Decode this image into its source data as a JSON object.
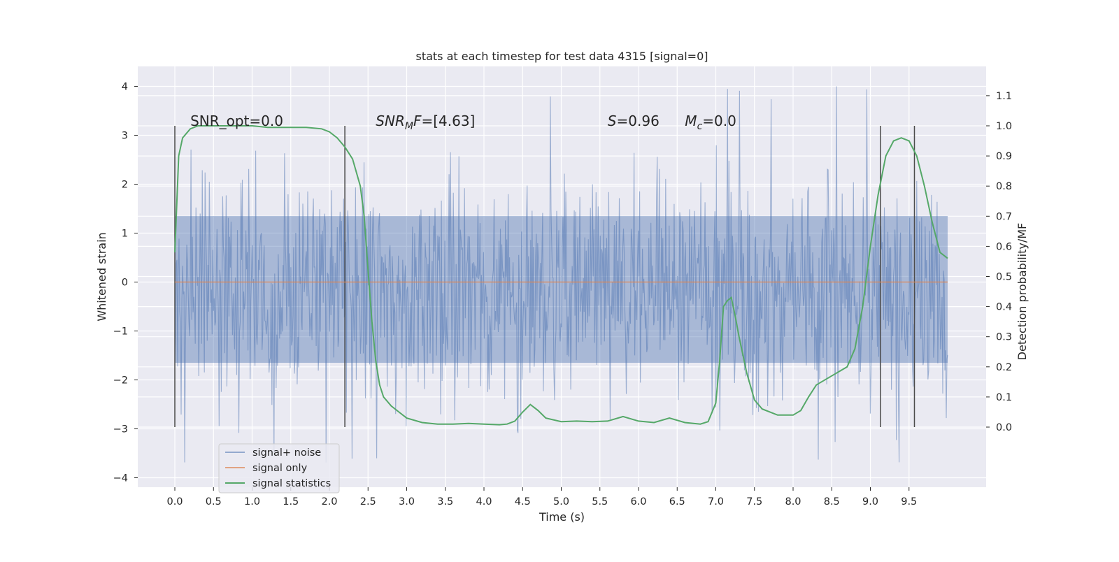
{
  "chart_data": {
    "type": "line",
    "title": "stats at each timestep for test data 4315 [signal=0]",
    "xlabel": "Time (s)",
    "ylabel": "Whitened strain",
    "y2label": "Detection probability/MF",
    "xlim": [
      -0.5,
      10.5
    ],
    "ylim": [
      -4.2,
      4.4
    ],
    "y2lim": [
      -0.18,
      1.2
    ],
    "x_ticks": [
      0.0,
      0.5,
      1.0,
      1.5,
      2.0,
      2.5,
      3.0,
      3.5,
      4.0,
      4.5,
      5.0,
      5.5,
      6.0,
      6.5,
      7.0,
      7.5,
      8.0,
      8.5,
      9.0,
      9.5
    ],
    "y_ticks": [
      -4,
      -3,
      -2,
      -1,
      0,
      1,
      2,
      3,
      4
    ],
    "y2_ticks": [
      0.0,
      0.1,
      0.2,
      0.3,
      0.4,
      0.5,
      0.6,
      0.7,
      0.8,
      0.9,
      1.0,
      1.1
    ],
    "grid": true,
    "legend_position": "lower-left",
    "colors": {
      "background": "#eaeaf2",
      "noise": "#4c72b0",
      "signal_only": "#dd8452",
      "statistics": "#55a868",
      "marker": "#4a4a4a",
      "grid": "#ffffff"
    },
    "series": [
      {
        "name": "signal+ noise",
        "axis": "left",
        "x_range": [
          0.0,
          10.0
        ],
        "sample_count": 1100,
        "typical_range": [
          -1.7,
          1.4
        ],
        "extremes": [
          -3.8,
          4.05
        ]
      },
      {
        "name": "signal only",
        "axis": "left",
        "x": [
          0.0,
          10.0
        ],
        "y": [
          0.0,
          0.0
        ]
      },
      {
        "name": "signal statistics",
        "axis": "right",
        "x": [
          0.0,
          0.05,
          0.1,
          0.2,
          0.3,
          0.5,
          0.8,
          1.0,
          1.2,
          1.5,
          1.7,
          1.9,
          2.0,
          2.1,
          2.2,
          2.3,
          2.4,
          2.45,
          2.5,
          2.55,
          2.6,
          2.65,
          2.7,
          2.8,
          2.9,
          3.0,
          3.2,
          3.4,
          3.6,
          3.8,
          4.0,
          4.2,
          4.3,
          4.4,
          4.5,
          4.6,
          4.7,
          4.8,
          5.0,
          5.2,
          5.4,
          5.6,
          5.8,
          6.0,
          6.2,
          6.4,
          6.6,
          6.8,
          6.9,
          7.0,
          7.05,
          7.1,
          7.15,
          7.2,
          7.25,
          7.3,
          7.4,
          7.5,
          7.6,
          7.8,
          8.0,
          8.1,
          8.2,
          8.3,
          8.5,
          8.7,
          8.8,
          8.9,
          9.0,
          9.1,
          9.2,
          9.3,
          9.4,
          9.5,
          9.6,
          9.7,
          9.8,
          9.9,
          10.0
        ],
        "y": [
          0.58,
          0.9,
          0.96,
          0.99,
          1.0,
          1.0,
          1.0,
          1.0,
          0.995,
          0.995,
          0.995,
          0.99,
          0.98,
          0.96,
          0.93,
          0.89,
          0.8,
          0.7,
          0.52,
          0.35,
          0.22,
          0.14,
          0.1,
          0.07,
          0.05,
          0.03,
          0.015,
          0.01,
          0.01,
          0.012,
          0.01,
          0.008,
          0.01,
          0.02,
          0.05,
          0.075,
          0.055,
          0.03,
          0.018,
          0.02,
          0.018,
          0.02,
          0.035,
          0.02,
          0.015,
          0.03,
          0.015,
          0.01,
          0.018,
          0.08,
          0.22,
          0.4,
          0.42,
          0.43,
          0.37,
          0.3,
          0.18,
          0.09,
          0.06,
          0.04,
          0.04,
          0.055,
          0.1,
          0.14,
          0.17,
          0.2,
          0.26,
          0.4,
          0.6,
          0.77,
          0.9,
          0.95,
          0.96,
          0.95,
          0.9,
          0.8,
          0.68,
          0.58,
          0.56
        ]
      }
    ],
    "markers": [
      0.0,
      2.2,
      9.13,
      9.57
    ],
    "annotations": [
      {
        "text": "SNR_opt=0.0",
        "x": 0.2
      },
      {
        "text_main": "SNR",
        "text_sub": "M",
        "text_tail": "F=[4.63]",
        "x": 2.6
      },
      {
        "text_main": "S",
        "text_tail": "=0.96",
        "x": 5.6
      },
      {
        "text_main": "M",
        "text_sub": "c",
        "text_tail": "=0.0",
        "x": 6.6
      }
    ]
  }
}
